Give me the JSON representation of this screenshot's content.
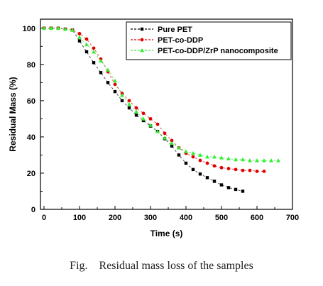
{
  "caption": "Fig.    Residual mass loss of the samples",
  "colors": {
    "pure_pet": "#000000",
    "pet_co_ddp": "#e00000",
    "pet_co_ddp_zrp": "#33ee33"
  },
  "chart_data": {
    "type": "scatter",
    "title": "",
    "xlabel": "Time (s)",
    "ylabel": "Residual Mass  (%)",
    "xlim": [
      -10,
      700
    ],
    "ylim": [
      0,
      105
    ],
    "xticks": [
      0,
      100,
      200,
      300,
      400,
      500,
      600,
      700
    ],
    "yticks": [
      0,
      20,
      40,
      60,
      80,
      100
    ],
    "grid": false,
    "legend_position": "top-right",
    "series": [
      {
        "name": "Pure PET",
        "color": "#000000",
        "marker": "square",
        "x": [
          0,
          20,
          40,
          60,
          80,
          100,
          120,
          140,
          160,
          180,
          200,
          220,
          240,
          260,
          280,
          300,
          320,
          340,
          360,
          380,
          400,
          420,
          440,
          460,
          480,
          500,
          520,
          540,
          560
        ],
        "y": [
          100,
          100,
          100,
          99.5,
          99,
          93,
          87,
          81,
          75.5,
          70,
          65,
          60,
          56,
          52,
          49,
          46,
          43,
          39,
          35,
          30,
          25.5,
          22,
          19.5,
          17.5,
          15.5,
          13.5,
          12,
          11,
          10
        ]
      },
      {
        "name": "PET-co-DDP",
        "color": "#e00000",
        "marker": "circle",
        "x": [
          0,
          20,
          40,
          60,
          80,
          100,
          120,
          140,
          160,
          180,
          200,
          220,
          240,
          260,
          280,
          300,
          320,
          340,
          360,
          380,
          400,
          420,
          440,
          460,
          480,
          500,
          520,
          540,
          560,
          580,
          600,
          620
        ],
        "y": [
          100,
          100,
          100,
          99.5,
          99,
          97,
          94,
          89,
          83,
          76,
          69,
          64,
          60,
          56,
          53,
          50,
          47,
          42,
          38,
          34,
          31,
          29,
          27,
          25.5,
          24,
          23,
          22.5,
          22,
          21.5,
          21.5,
          21,
          21
        ]
      },
      {
        "name": "PET-co-DDP/ZrP nanocomposite",
        "color": "#33ee33",
        "marker": "triangle",
        "x": [
          0,
          20,
          40,
          60,
          80,
          100,
          120,
          140,
          160,
          180,
          200,
          220,
          240,
          260,
          280,
          300,
          320,
          340,
          360,
          380,
          400,
          420,
          440,
          460,
          480,
          500,
          520,
          540,
          560,
          580,
          600,
          620,
          640,
          660
        ],
        "y": [
          100,
          100,
          100,
          99.5,
          99,
          95,
          91,
          87,
          82,
          77,
          71,
          63,
          58,
          54,
          50,
          46.5,
          43,
          39.5,
          36.5,
          34,
          32,
          31,
          30,
          29,
          29,
          28.5,
          28,
          27.5,
          27.5,
          27,
          27,
          27,
          27,
          27
        ]
      }
    ]
  }
}
